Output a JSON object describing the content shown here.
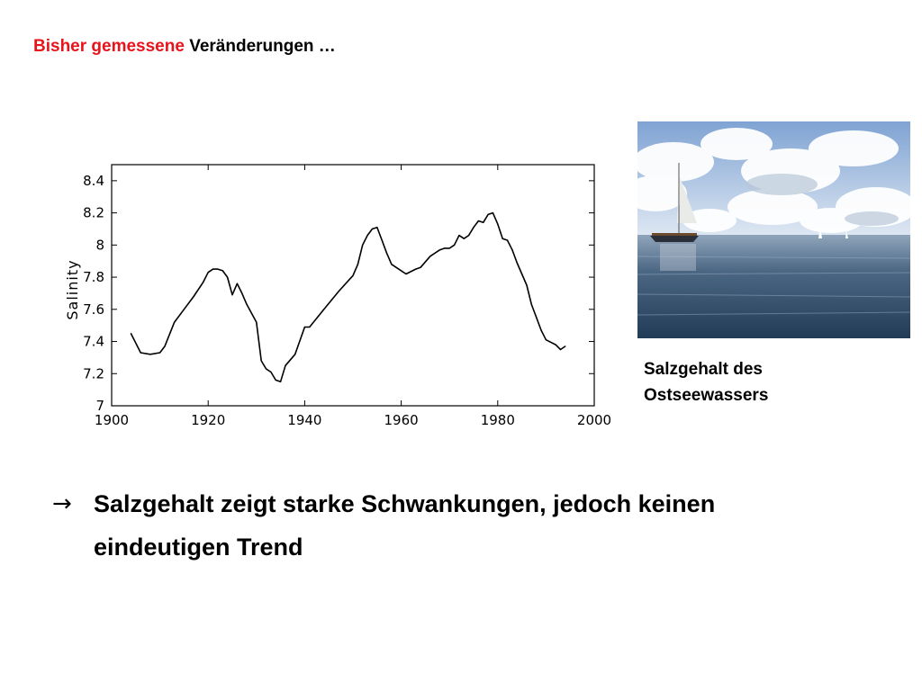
{
  "title": {
    "accent": "Bisher gemessene",
    "rest": " Veränderungen …"
  },
  "caption": {
    "line1": "Salzgehalt des",
    "line2": "Ostseewassers"
  },
  "conclusion": {
    "arrow": "→",
    "text": "Salzgehalt zeigt starke Schwankungen, jedoch keinen eindeutigen Trend"
  },
  "photo": {
    "icon": "sailboat-sea-photo",
    "sky": "#c9d9ee",
    "sea": "#34506e"
  },
  "chart_data": {
    "type": "line",
    "title": "",
    "xlabel": "",
    "ylabel": "Salinity",
    "xlim": [
      1900,
      2000
    ],
    "ylim": [
      7,
      8.5
    ],
    "x_ticks": [
      1900,
      1920,
      1940,
      1960,
      1980,
      2000
    ],
    "x_tick_labels": [
      "1900",
      "1920",
      "1940",
      "1960",
      "1980",
      "2000"
    ],
    "y_ticks": [
      7,
      7.2,
      7.4,
      7.6,
      7.8,
      8,
      8.2,
      8.4
    ],
    "y_tick_labels": [
      "7",
      "7.2",
      "7.4",
      "7.6",
      "7.8",
      "8",
      "8.2",
      "8.4"
    ],
    "grid": false,
    "line_color": "#000000",
    "series": [
      {
        "x": [
          1904,
          1906,
          1908,
          1910,
          1911,
          1913,
          1915,
          1917,
          1919,
          1920,
          1921,
          1922,
          1923,
          1924,
          1925,
          1926,
          1927,
          1928,
          1930,
          1931,
          1932,
          1933,
          1934,
          1935,
          1936,
          1938,
          1940,
          1941,
          1944,
          1947,
          1950,
          1951,
          1952,
          1953,
          1954,
          1955,
          1956,
          1957,
          1958,
          1960,
          1961,
          1963,
          1964,
          1966,
          1968,
          1969,
          1970,
          1971,
          1972,
          1973,
          1974,
          1975,
          1976,
          1977,
          1978,
          1979,
          1980,
          1981,
          1982,
          1983,
          1984,
          1986,
          1987,
          1988,
          1989,
          1990,
          1992,
          1993,
          1994
        ],
        "values": [
          7.45,
          7.33,
          7.32,
          7.33,
          7.37,
          7.52,
          7.6,
          7.68,
          7.77,
          7.83,
          7.85,
          7.85,
          7.84,
          7.8,
          7.69,
          7.76,
          7.7,
          7.63,
          7.52,
          7.28,
          7.23,
          7.21,
          7.16,
          7.15,
          7.25,
          7.32,
          7.49,
          7.49,
          7.6,
          7.71,
          7.81,
          7.88,
          8.0,
          8.06,
          8.1,
          8.11,
          8.03,
          7.95,
          7.88,
          7.84,
          7.82,
          7.85,
          7.86,
          7.93,
          7.97,
          7.98,
          7.98,
          8.0,
          8.06,
          8.04,
          8.06,
          8.11,
          8.15,
          8.14,
          8.19,
          8.2,
          8.13,
          8.04,
          8.03,
          7.97,
          7.89,
          7.75,
          7.63,
          7.55,
          7.47,
          7.41,
          7.38,
          7.35,
          7.37
        ]
      }
    ]
  }
}
